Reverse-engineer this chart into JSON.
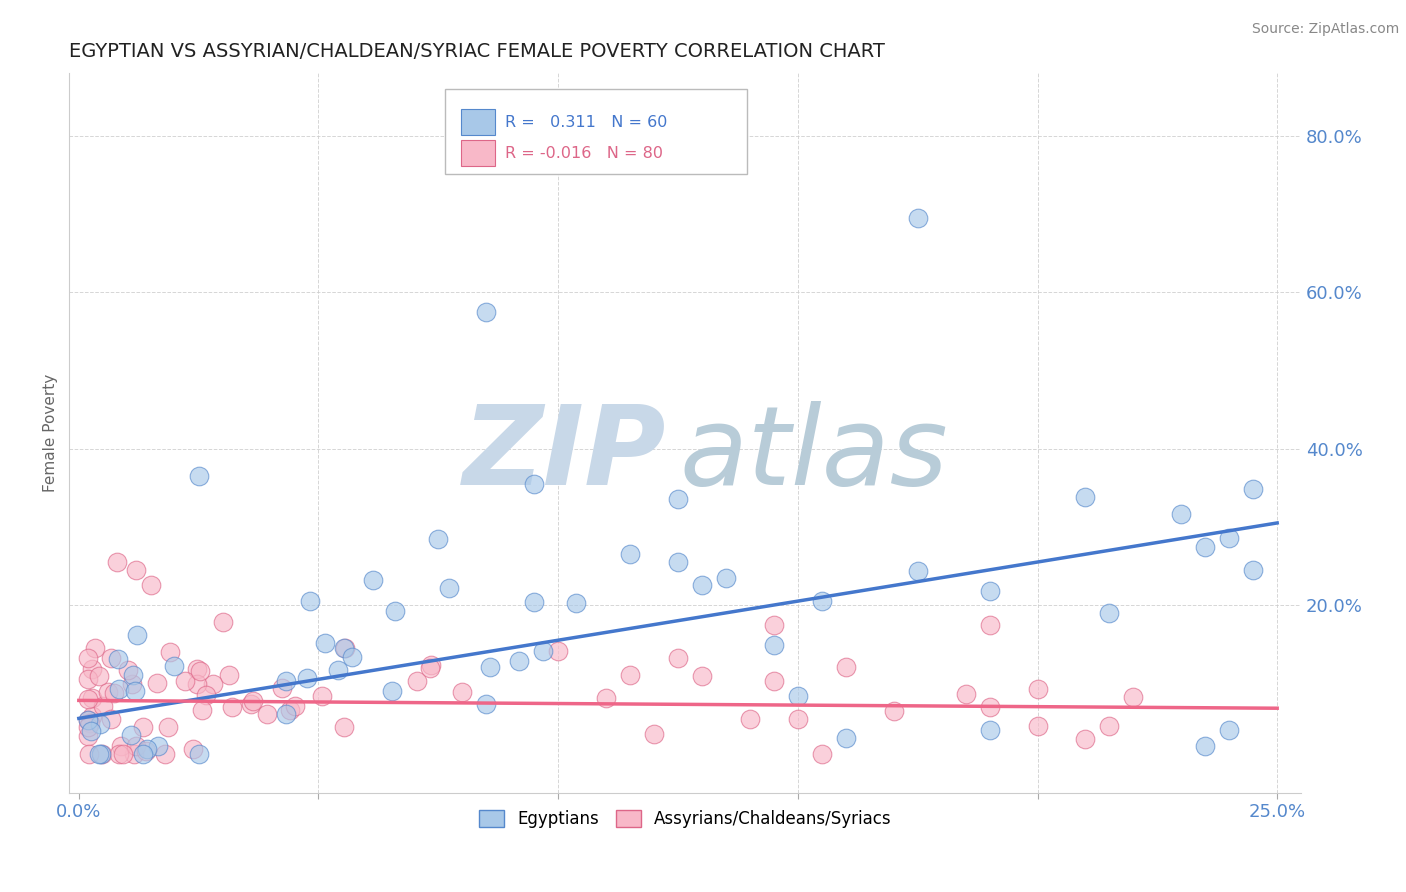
{
  "title": "EGYPTIAN VS ASSYRIAN/CHALDEAN/SYRIAC FEMALE POVERTY CORRELATION CHART",
  "source": "Source: ZipAtlas.com",
  "ylabel": "Female Poverty",
  "xlim": [
    -0.002,
    0.255
  ],
  "ylim": [
    -0.04,
    0.88
  ],
  "xtick_vals": [
    0.0,
    0.05,
    0.1,
    0.15,
    0.2,
    0.25
  ],
  "xticklabels": [
    "0.0%",
    "",
    "",
    "",
    "",
    "25.0%"
  ],
  "yticks_right": [
    0.0,
    0.2,
    0.4,
    0.6,
    0.8
  ],
  "yticklabels_right": [
    "",
    "20.0%",
    "40.0%",
    "60.0%",
    "80.0%"
  ],
  "color_egyptian": "#a8c8e8",
  "color_assyrian": "#f8b8c8",
  "edge_color_egyptian": "#5588cc",
  "edge_color_assyrian": "#dd6688",
  "line_color_egyptian": "#4477cc",
  "line_color_assyrian": "#ee6688",
  "watermark_zip_color": "#c8d8e8",
  "watermark_atlas_color": "#b8ccd8",
  "background": "#ffffff",
  "grid_color": "#cccccc",
  "title_color": "#222222",
  "axis_tick_color": "#5588cc",
  "legend_text_color": "#333355",
  "legend_r1_color": "#4477cc",
  "legend_r2_color": "#dd6688",
  "trend_egy_x0": 0.0,
  "trend_egy_x1": 0.25,
  "trend_egy_y0": 0.055,
  "trend_egy_y1": 0.305,
  "trend_ass_x0": 0.0,
  "trend_ass_x1": 0.25,
  "trend_ass_y0": 0.078,
  "trend_ass_y1": 0.068
}
